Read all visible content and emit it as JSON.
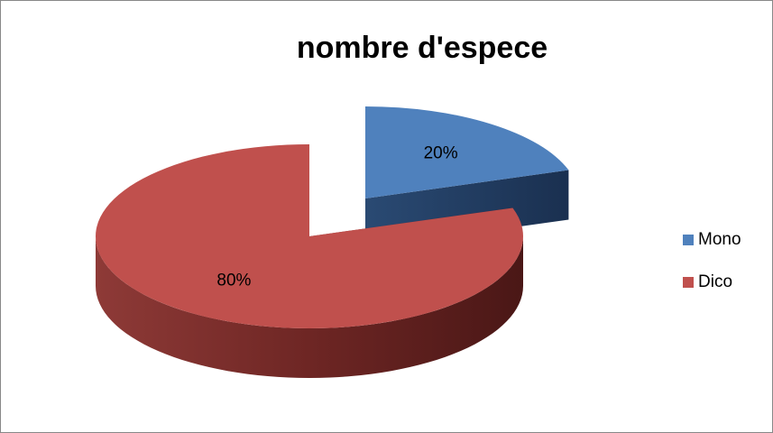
{
  "chart_data": {
    "type": "pie",
    "title": "nombre d'espece",
    "categories": [
      "Mono",
      "Dico"
    ],
    "values": [
      20,
      80
    ],
    "value_labels": [
      "20%",
      "80%"
    ],
    "colors": [
      "#4f81bd",
      "#c0504d"
    ],
    "legend": "right"
  }
}
